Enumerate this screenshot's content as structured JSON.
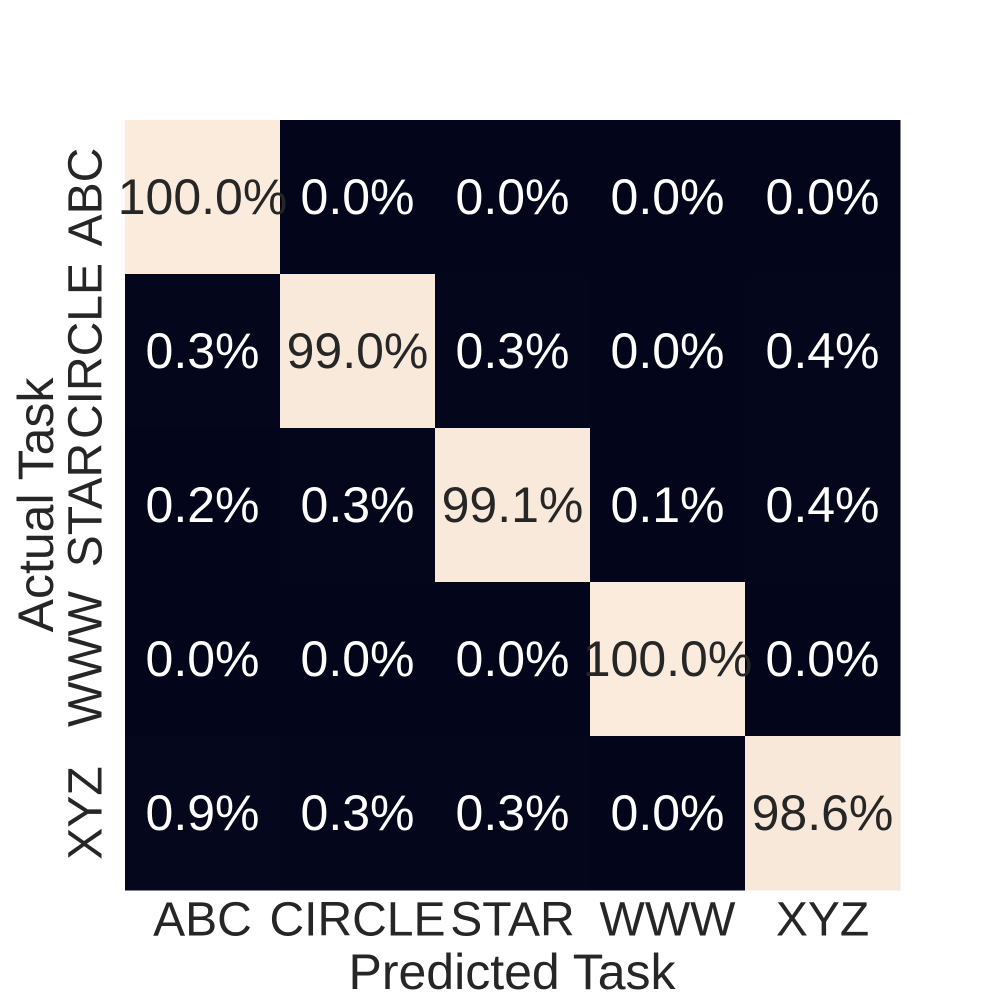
{
  "chart_data": {
    "type": "heatmap",
    "title": "",
    "xlabel": "Predicted Task",
    "ylabel": "Actual Task",
    "x_categories": [
      "ABC",
      "CIRCLE",
      "STAR",
      "WWW",
      "XYZ"
    ],
    "y_categories": [
      "ABC",
      "CIRCLE",
      "STAR",
      "WWW",
      "XYZ"
    ],
    "values": [
      [
        100.0,
        0.0,
        0.0,
        0.0,
        0.0
      ],
      [
        0.3,
        99.0,
        0.3,
        0.0,
        0.4
      ],
      [
        0.2,
        0.3,
        99.1,
        0.1,
        0.4
      ],
      [
        0.0,
        0.0,
        0.0,
        100.0,
        0.0
      ],
      [
        0.9,
        0.3,
        0.3,
        0.0,
        98.6
      ]
    ],
    "value_format": "percent_1dp",
    "colorbar": false,
    "colors": {
      "low": "#03051a",
      "high": "#faebdd",
      "text_on_dark": "#ffffff",
      "text_on_light": "#262626"
    }
  }
}
